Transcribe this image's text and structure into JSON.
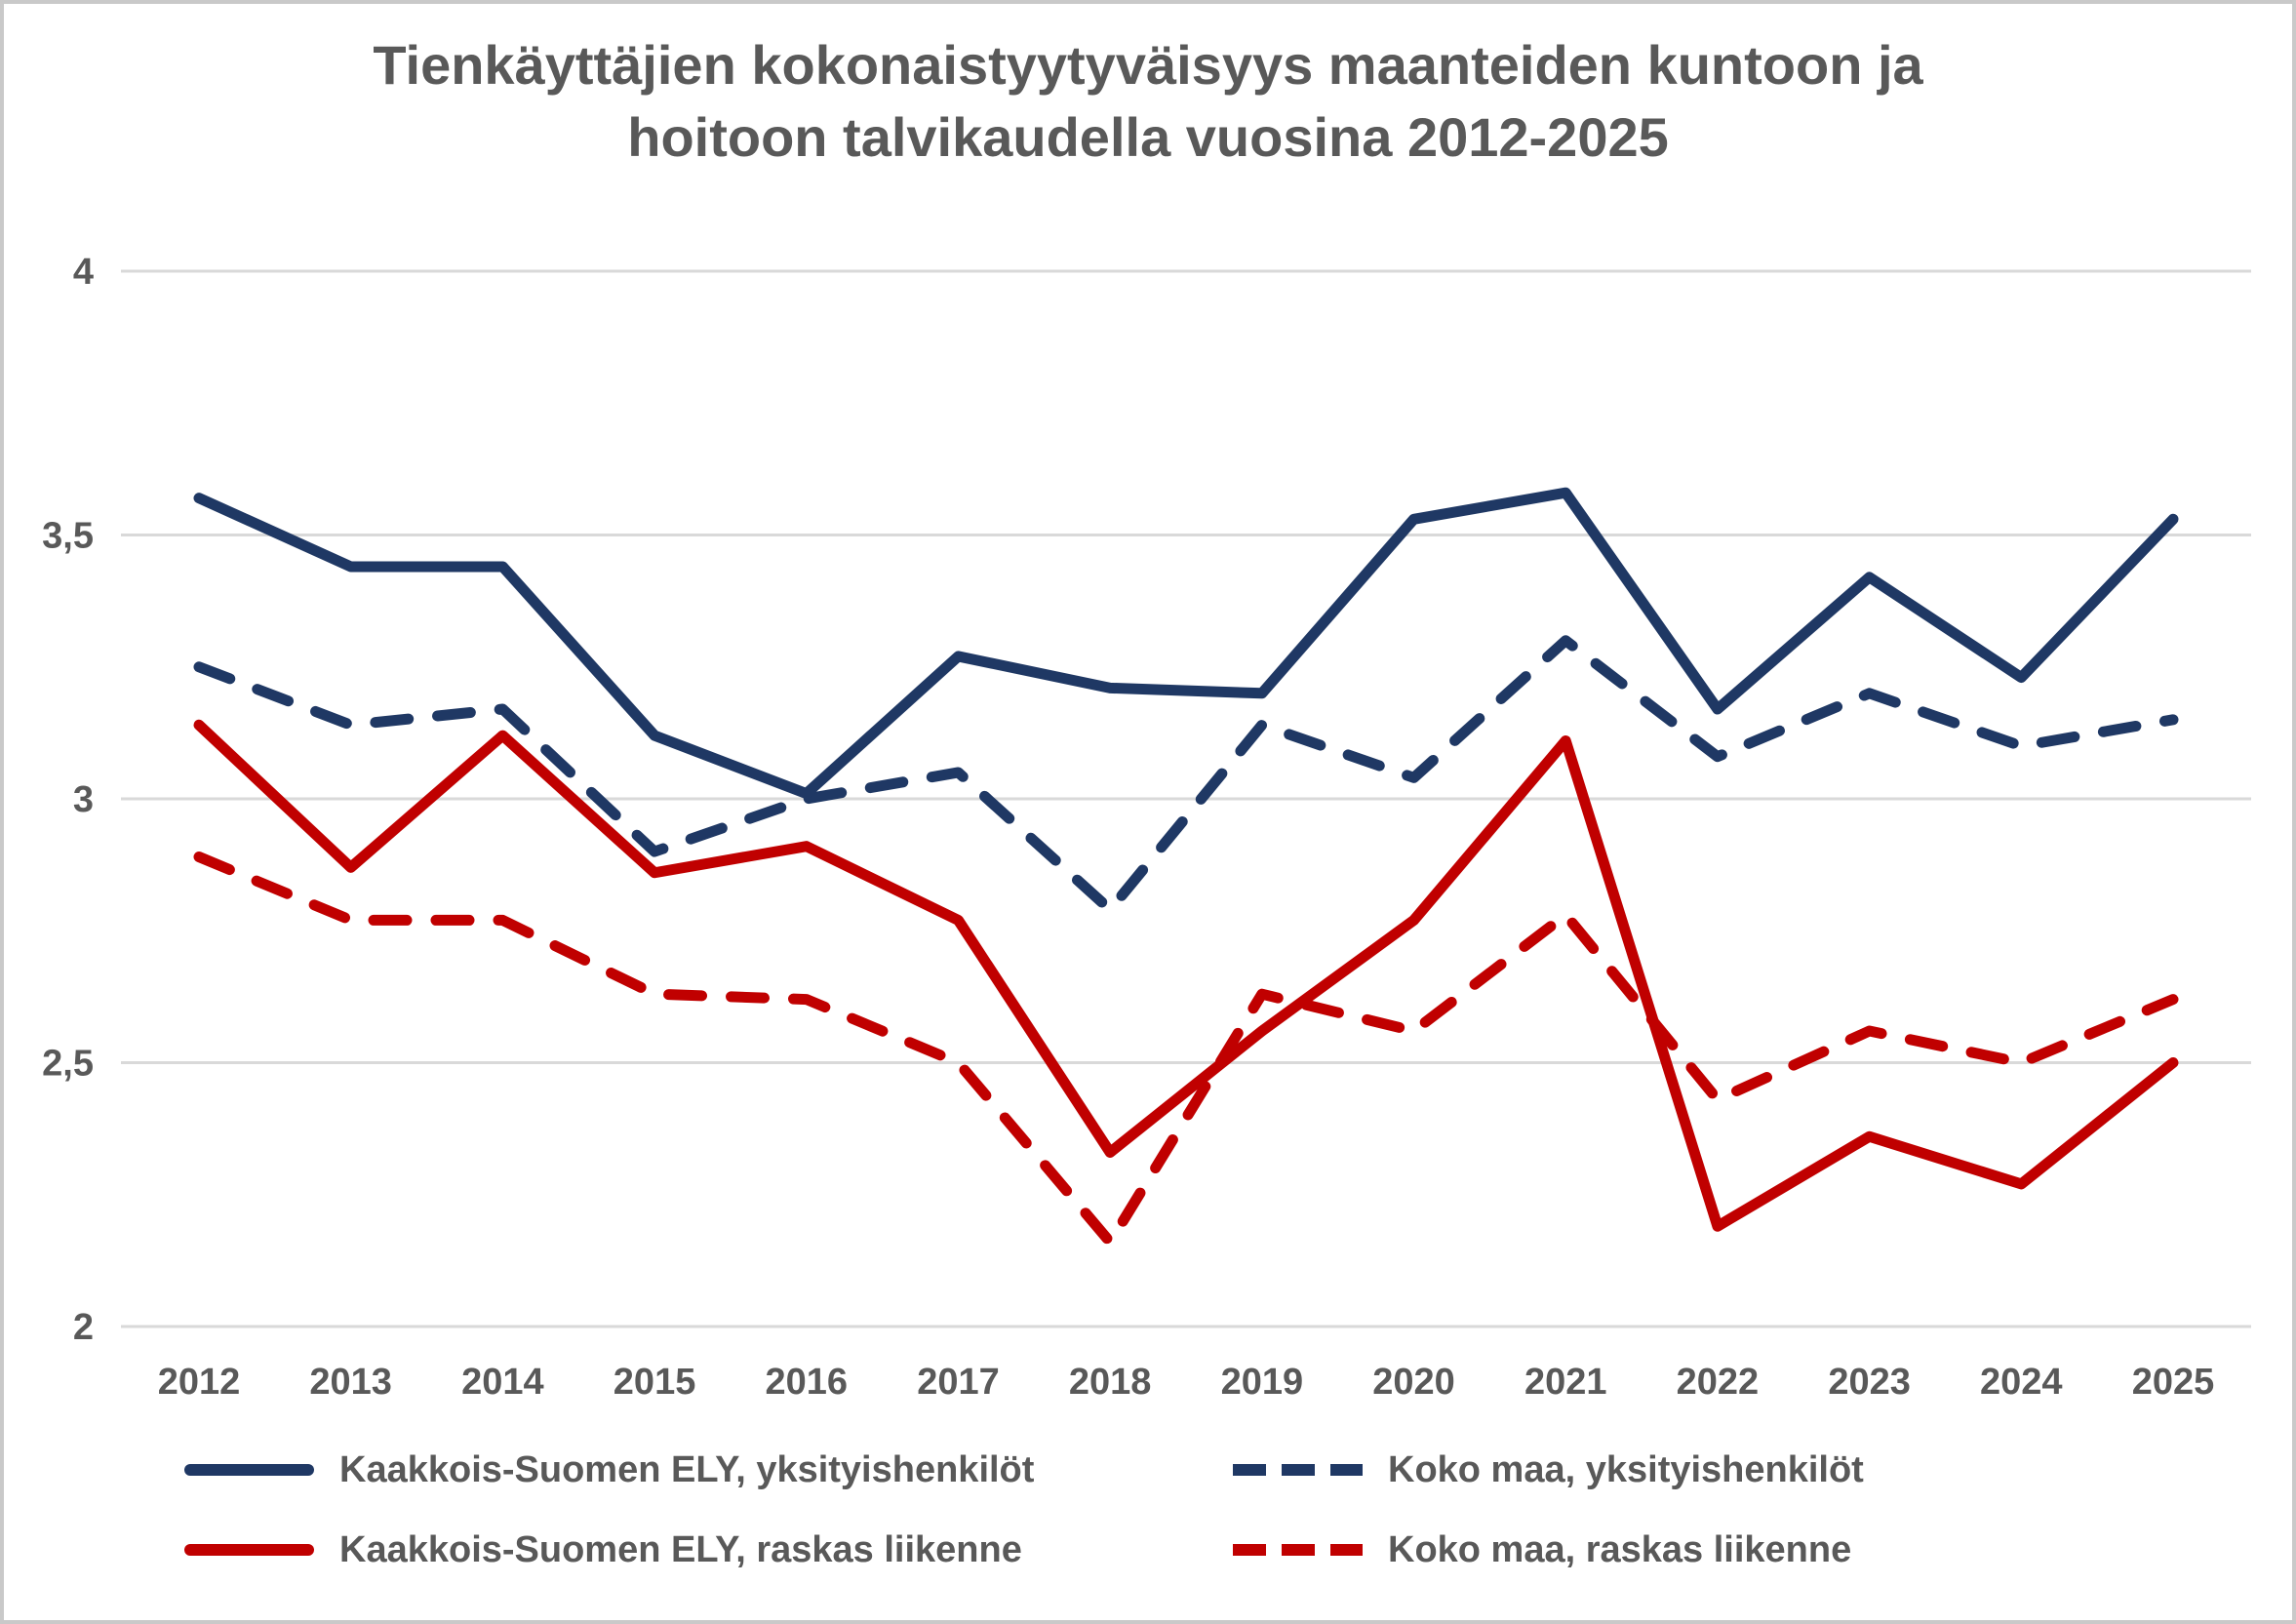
{
  "page": {
    "background": "#ffffff",
    "frame_color": "#c9c9c9",
    "text_color": "#595959",
    "gridline_color": "#d9d9d9"
  },
  "chart_data": {
    "type": "line",
    "title": "Tienkäyttäjien kokonaistyytyväisyys maanteiden kuntoon ja hoitoon talvikaudella vuosina 2012-2025",
    "title_lines": [
      "Tienkäyttäjien kokonaistyytyväisyys maanteiden kuntoon ja",
      "hoitoon talvikaudella vuosina 2012-2025"
    ],
    "categories": [
      "2012",
      "2013",
      "2014",
      "2015",
      "2016",
      "2017",
      "2018",
      "2019",
      "2020",
      "2021",
      "2022",
      "2023",
      "2024",
      "2025"
    ],
    "ylim": [
      2,
      4
    ],
    "yticks": [
      {
        "value": 4,
        "label": "4"
      },
      {
        "value": 3.5,
        "label": "3,5"
      },
      {
        "value": 3,
        "label": "3"
      },
      {
        "value": 2.5,
        "label": "2,5"
      },
      {
        "value": 2,
        "label": "2"
      }
    ],
    "grid": "horizontal-only",
    "legend_position": "bottom",
    "series": [
      {
        "name": "Kaakkois-Suomen ELY, yksityishenkilöt",
        "color": "#1f3864",
        "dashed": false,
        "values": [
          3.57,
          3.44,
          3.44,
          3.12,
          3.01,
          3.27,
          3.21,
          3.2,
          3.53,
          3.58,
          3.17,
          3.42,
          3.23,
          3.53
        ]
      },
      {
        "name": "Koko maa, yksityishenkilöt",
        "color": "#1f3864",
        "dashed": true,
        "values": [
          3.25,
          3.14,
          3.17,
          2.9,
          3.0,
          3.05,
          2.79,
          3.14,
          3.04,
          3.3,
          3.08,
          3.2,
          3.1,
          3.15
        ]
      },
      {
        "name": "Kaakkois-Suomen ELY, raskas liikenne",
        "color": "#c00000",
        "dashed": false,
        "values": [
          3.14,
          2.87,
          3.12,
          2.86,
          2.91,
          2.77,
          2.33,
          2.56,
          2.77,
          3.11,
          2.19,
          2.36,
          2.27,
          2.5
        ]
      },
      {
        "name": "Koko maa, raskas liikenne",
        "color": "#c00000",
        "dashed": true,
        "values": [
          2.89,
          2.77,
          2.77,
          2.63,
          2.62,
          2.5,
          2.16,
          2.63,
          2.56,
          2.78,
          2.43,
          2.56,
          2.5,
          2.62
        ]
      }
    ]
  }
}
